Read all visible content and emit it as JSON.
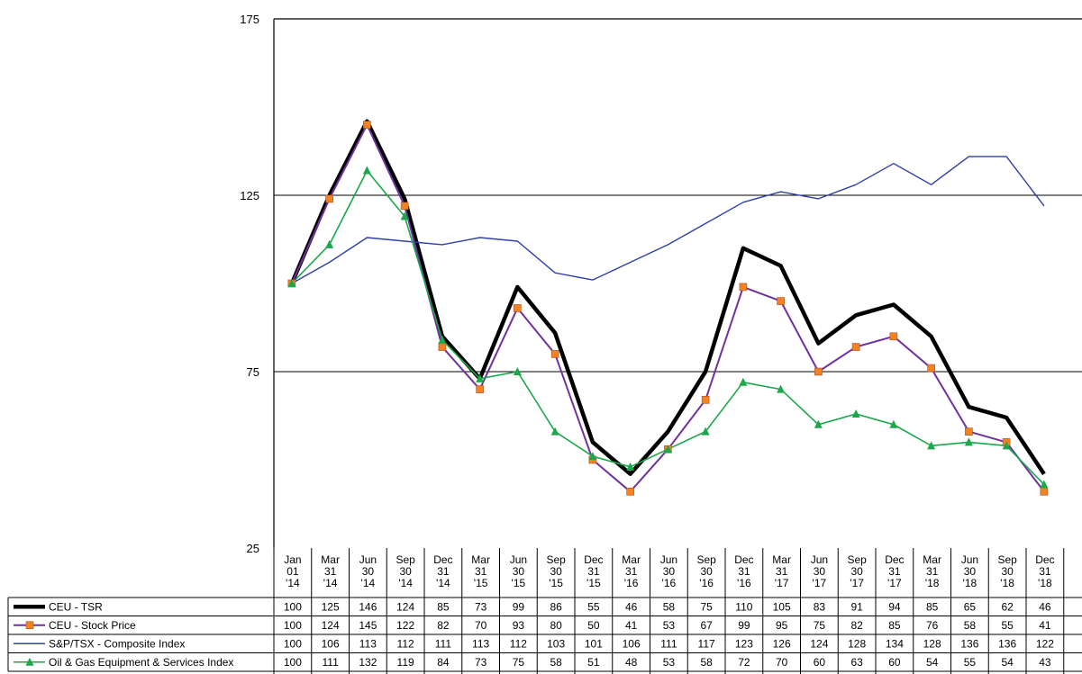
{
  "chart_data": {
    "type": "line",
    "title": "",
    "xlabel": "",
    "ylabel": "",
    "ylim": [
      25,
      175
    ],
    "yticks": [
      25,
      75,
      125,
      175
    ],
    "grid_lines": [
      75,
      125
    ],
    "categories": [
      [
        "Jan",
        "01",
        "'14"
      ],
      [
        "Mar",
        "31",
        "'14"
      ],
      [
        "Jun",
        "30",
        "'14"
      ],
      [
        "Sep",
        "30",
        "'14"
      ],
      [
        "Dec",
        "31",
        "'14"
      ],
      [
        "Mar",
        "31",
        "'15"
      ],
      [
        "Jun",
        "30",
        "'15"
      ],
      [
        "Sep",
        "30",
        "'15"
      ],
      [
        "Dec",
        "31",
        "'15"
      ],
      [
        "Mar",
        "31",
        "'16"
      ],
      [
        "Jun",
        "30",
        "'16"
      ],
      [
        "Sep",
        "30",
        "'16"
      ],
      [
        "Dec",
        "31",
        "'16"
      ],
      [
        "Mar",
        "31",
        "'17"
      ],
      [
        "Jun",
        "30",
        "'17"
      ],
      [
        "Sep",
        "30",
        "'17"
      ],
      [
        "Dec",
        "31",
        "'17"
      ],
      [
        "Mar",
        "31",
        "'18"
      ],
      [
        "Jun",
        "30",
        "'18"
      ],
      [
        "Sep",
        "30",
        "'18"
      ],
      [
        "Dec",
        "31",
        "'18"
      ]
    ],
    "series": [
      {
        "name": "CEU - TSR",
        "color": "#000000",
        "marker": "none",
        "values": [
          100,
          125,
          146,
          124,
          85,
          73,
          99,
          86,
          55,
          46,
          58,
          75,
          110,
          105,
          83,
          91,
          94,
          85,
          65,
          62,
          46
        ]
      },
      {
        "name": "CEU - Stock Price",
        "color": "#7030a0",
        "marker": "square",
        "marker_color": "#f58220",
        "values": [
          100,
          124,
          145,
          122,
          82,
          70,
          93,
          80,
          50,
          41,
          53,
          67,
          99,
          95,
          75,
          82,
          85,
          76,
          58,
          55,
          41
        ]
      },
      {
        "name": "S&P/TSX - Composite Index",
        "color": "#2e3fa8",
        "marker": "none",
        "values": [
          100,
          106,
          113,
          112,
          111,
          113,
          112,
          103,
          101,
          106,
          111,
          117,
          123,
          126,
          124,
          128,
          134,
          128,
          136,
          136,
          122
        ]
      },
      {
        "name": "Oil & Gas Equipment & Services Index",
        "color": "#1aa84a",
        "marker": "triangle",
        "values": [
          100,
          111,
          132,
          119,
          84,
          73,
          75,
          58,
          51,
          48,
          53,
          58,
          72,
          70,
          60,
          63,
          60,
          54,
          55,
          54,
          43
        ]
      }
    ]
  }
}
